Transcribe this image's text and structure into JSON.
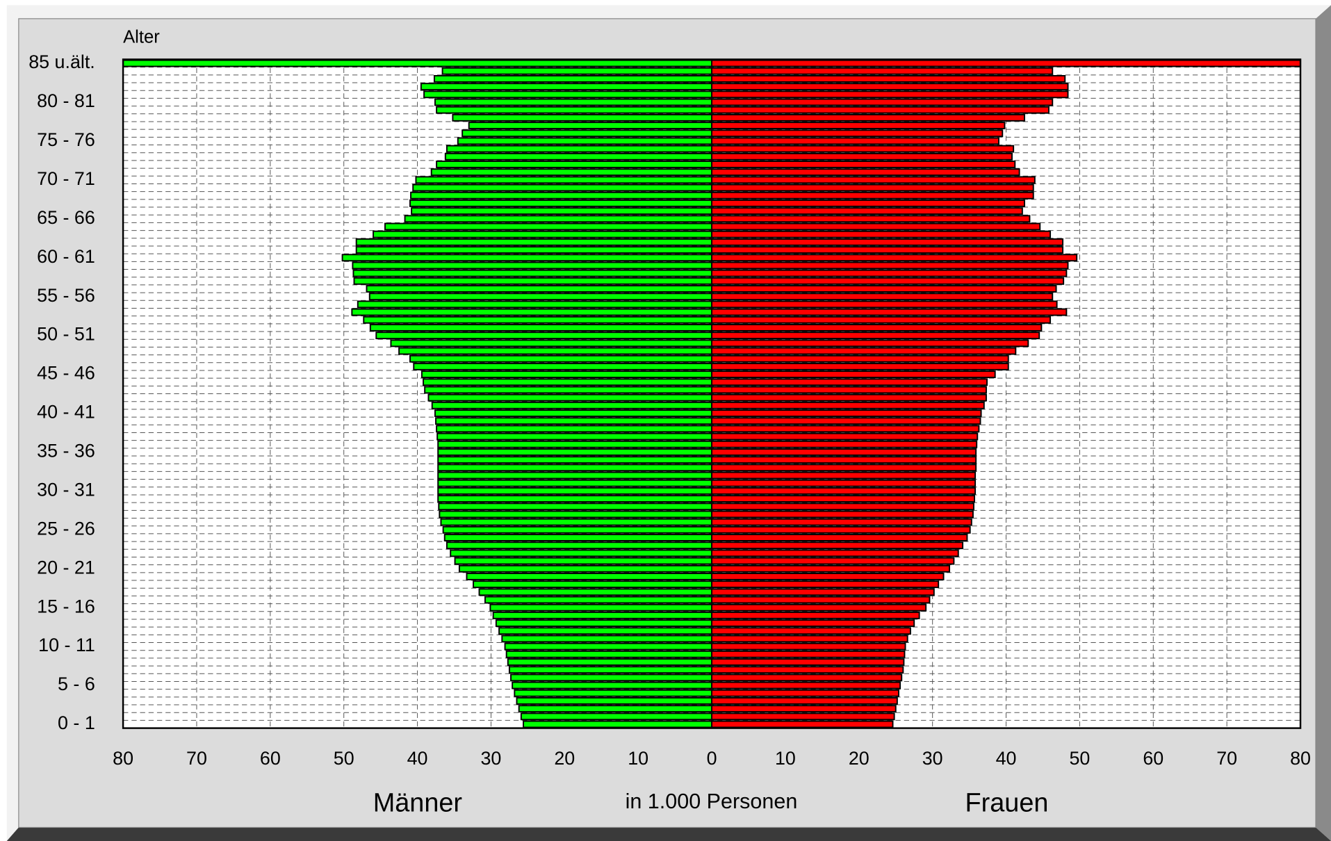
{
  "chart_data": {
    "type": "pyramid",
    "ylabel": "Alter",
    "xlabel": "in 1.000 Personen",
    "categories": [
      "0 - 1",
      null,
      null,
      null,
      null,
      "5 - 6",
      null,
      null,
      null,
      null,
      "10 - 11",
      null,
      null,
      null,
      null,
      "15 - 16",
      null,
      null,
      null,
      null,
      "20 - 21",
      null,
      null,
      null,
      null,
      "25 - 26",
      null,
      null,
      null,
      null,
      "30 - 31",
      null,
      null,
      null,
      null,
      "35 - 36",
      null,
      null,
      null,
      null,
      "40 - 41",
      null,
      null,
      null,
      null,
      "45 - 46",
      null,
      null,
      null,
      null,
      "50 - 51",
      null,
      null,
      null,
      null,
      "55 - 56",
      null,
      null,
      null,
      null,
      "60 - 61",
      null,
      null,
      null,
      null,
      "65 - 66",
      null,
      null,
      null,
      null,
      "70 - 71",
      null,
      null,
      null,
      null,
      "75 - 76",
      null,
      null,
      null,
      null,
      "80 - 81",
      null,
      null,
      null,
      null,
      "85 u.ält."
    ],
    "series": [
      {
        "name": "Männer",
        "color": "#00ff00",
        "side": "left",
        "values": [
          25.6,
          25.9,
          26.2,
          26.5,
          26.8,
          27.1,
          27.3,
          27.5,
          27.7,
          27.9,
          28.1,
          28.5,
          28.9,
          29.3,
          29.7,
          30.1,
          30.8,
          31.6,
          32.4,
          33.3,
          34.3,
          34.9,
          35.5,
          36.0,
          36.3,
          36.5,
          36.8,
          37.0,
          37.1,
          37.2,
          37.2,
          37.2,
          37.2,
          37.2,
          37.2,
          37.2,
          37.2,
          37.3,
          37.4,
          37.5,
          37.6,
          38.0,
          38.5,
          39.0,
          39.2,
          39.4,
          40.5,
          41.0,
          42.5,
          43.6,
          45.6,
          46.4,
          47.3,
          48.9,
          48.1,
          46.5,
          46.9,
          48.6,
          48.7,
          48.8,
          50.2,
          48.3,
          48.3,
          46.0,
          44.4,
          41.7,
          40.8,
          41.0,
          40.9,
          40.6,
          40.2,
          38.1,
          37.4,
          36.2,
          36.0,
          34.5,
          33.9,
          33.0,
          35.2,
          37.4,
          37.6,
          39.1,
          39.5,
          37.7,
          36.6,
          80
        ]
      },
      {
        "name": "Frauen",
        "color": "#ff0000",
        "side": "right",
        "values": [
          24.6,
          24.8,
          25.0,
          25.2,
          25.4,
          25.6,
          25.8,
          26.0,
          26.1,
          26.2,
          26.3,
          26.6,
          27.0,
          27.5,
          28.2,
          29.1,
          29.6,
          30.2,
          30.8,
          31.5,
          32.3,
          32.9,
          33.5,
          34.1,
          34.7,
          35.1,
          35.3,
          35.5,
          35.6,
          35.7,
          35.8,
          35.8,
          35.8,
          35.9,
          35.9,
          35.9,
          36.0,
          36.1,
          36.3,
          36.5,
          36.6,
          37.0,
          37.3,
          37.3,
          37.4,
          38.5,
          40.3,
          40.3,
          41.3,
          43.0,
          44.5,
          44.8,
          46.0,
          48.2,
          46.9,
          46.3,
          46.8,
          47.8,
          48.2,
          48.4,
          49.6,
          47.7,
          47.7,
          46.0,
          44.6,
          43.2,
          42.2,
          42.5,
          43.7,
          43.7,
          43.9,
          41.8,
          41.2,
          40.8,
          41.0,
          39.0,
          39.5,
          39.8,
          42.5,
          45.8,
          46.3,
          48.4,
          48.4,
          48.0,
          46.3,
          80
        ]
      }
    ],
    "xlim": [
      -80,
      80
    ],
    "xticks": [
      {
        "value": -80,
        "label": "80"
      },
      {
        "value": -70,
        "label": "70"
      },
      {
        "value": -60,
        "label": "60"
      },
      {
        "value": -50,
        "label": "50"
      },
      {
        "value": -40,
        "label": "40"
      },
      {
        "value": -30,
        "label": "30"
      },
      {
        "value": -20,
        "label": "20"
      },
      {
        "value": -10,
        "label": "10"
      },
      0,
      10,
      20,
      30,
      40,
      50,
      60,
      70,
      80
    ],
    "grid": true
  }
}
